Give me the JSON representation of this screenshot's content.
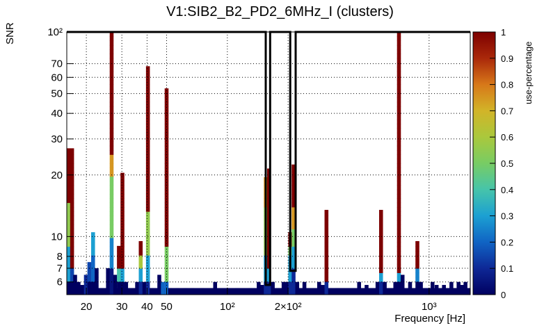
{
  "chart_data": {
    "type": "heatmap",
    "title": "V1:SIB2_B2_PD2_6MHz_I (clusters)",
    "xlabel": "Frequency [Hz]",
    "ylabel": "SNR",
    "colorbar_label": "use-percentage",
    "x_scale": "log",
    "y_scale": "log",
    "xlim": [
      16,
      1600
    ],
    "ylim": [
      5.2,
      100
    ],
    "clim": [
      0,
      1
    ],
    "x_ticks": [
      {
        "value": 20,
        "label": "20"
      },
      {
        "value": 30,
        "label": "30"
      },
      {
        "value": 40,
        "label": "40"
      },
      {
        "value": 50,
        "label": "50"
      },
      {
        "value": 100,
        "label": "10²"
      },
      {
        "value": 200,
        "label": "2×10²"
      },
      {
        "value": 1000,
        "label": "10³"
      }
    ],
    "y_ticks": [
      {
        "value": 6,
        "label": "6"
      },
      {
        "value": 7,
        "label": "7"
      },
      {
        "value": 8,
        "label": "8"
      },
      {
        "value": 10,
        "label": "10"
      },
      {
        "value": 20,
        "label": "20"
      },
      {
        "value": 30,
        "label": "30"
      },
      {
        "value": 40,
        "label": "40"
      },
      {
        "value": 50,
        "label": "50"
      },
      {
        "value": 60,
        "label": "60"
      },
      {
        "value": 70,
        "label": "70"
      },
      {
        "value": 100,
        "label": "10²"
      }
    ],
    "colorbar_ticks": [
      {
        "value": 0,
        "label": "0"
      },
      {
        "value": 0.1,
        "label": "0.1"
      },
      {
        "value": 0.2,
        "label": "0.2"
      },
      {
        "value": 0.3,
        "label": "0.3"
      },
      {
        "value": 0.4,
        "label": "0.4"
      },
      {
        "value": 0.5,
        "label": "0.5"
      },
      {
        "value": 0.6,
        "label": "0.6"
      },
      {
        "value": 0.7,
        "label": "0.7"
      },
      {
        "value": 0.8,
        "label": "0.8"
      },
      {
        "value": 0.9,
        "label": "0.9"
      },
      {
        "value": 1,
        "label": "1"
      }
    ],
    "columns": [
      {
        "f": 16.3,
        "top": 27,
        "stops": [
          [
            6,
            0
          ],
          [
            9,
            0.3
          ],
          [
            15,
            0.55
          ],
          [
            16,
            1
          ]
        ]
      },
      {
        "f": 17.0,
        "top": 27,
        "stops": [
          [
            6,
            0
          ],
          [
            7,
            0.15
          ],
          [
            100,
            1
          ]
        ]
      },
      {
        "f": 17.6,
        "top": 6.5,
        "stops": [
          [
            100,
            0
          ]
        ]
      },
      {
        "f": 18.3,
        "top": 6.0,
        "stops": [
          [
            100,
            0
          ]
        ]
      },
      {
        "f": 19.1,
        "top": 5.8,
        "stops": [
          [
            100,
            0
          ]
        ]
      },
      {
        "f": 19.9,
        "top": 6.5,
        "stops": [
          [
            100,
            0.1
          ]
        ]
      },
      {
        "f": 20.7,
        "top": 7.5,
        "stops": [
          [
            6,
            0
          ],
          [
            100,
            0.15
          ]
        ]
      },
      {
        "f": 21.6,
        "top": 10.5,
        "stops": [
          [
            6,
            0
          ],
          [
            8,
            0.2
          ],
          [
            100,
            0.3
          ]
        ]
      },
      {
        "f": 22.5,
        "top": 7.0,
        "stops": [
          [
            100,
            0
          ]
        ]
      },
      {
        "f": 23.5,
        "top": 5.6,
        "stops": [
          [
            100,
            0
          ]
        ]
      },
      {
        "f": 25.6,
        "top": 7.0,
        "stops": [
          [
            100,
            0
          ]
        ]
      },
      {
        "f": 26.7,
        "top": 100,
        "stops": [
          [
            7,
            0.05
          ],
          [
            10,
            0.25
          ],
          [
            20,
            0.5
          ],
          [
            25,
            0.75
          ],
          [
            100,
            1
          ]
        ]
      },
      {
        "f": 27.8,
        "top": 6.5,
        "stops": [
          [
            100,
            0
          ]
        ]
      },
      {
        "f": 29.0,
        "top": 9.0,
        "stops": [
          [
            6,
            0
          ],
          [
            7,
            0.4
          ],
          [
            100,
            1
          ]
        ]
      },
      {
        "f": 30.2,
        "top": 20.5,
        "stops": [
          [
            6,
            0
          ],
          [
            7,
            0.3
          ],
          [
            100,
            1
          ]
        ]
      },
      {
        "f": 31.5,
        "top": 6.0,
        "stops": [
          [
            100,
            0
          ]
        ]
      },
      {
        "f": 35.7,
        "top": 6.0,
        "stops": [
          [
            100,
            0
          ]
        ]
      },
      {
        "f": 37.2,
        "top": 9.5,
        "stops": [
          [
            6,
            0.1
          ],
          [
            7,
            0.3
          ],
          [
            8,
            0.6
          ],
          [
            100,
            1
          ]
        ]
      },
      {
        "f": 38.8,
        "top": 6.0,
        "stops": [
          [
            100,
            0
          ]
        ]
      },
      {
        "f": 40.4,
        "top": 68,
        "stops": [
          [
            6,
            0.1
          ],
          [
            8,
            0.3
          ],
          [
            13,
            0.55
          ],
          [
            100,
            1
          ]
        ]
      },
      {
        "f": 42.1,
        "top": 5.6,
        "stops": [
          [
            100,
            0
          ]
        ]
      },
      {
        "f": 46.0,
        "top": 6.5,
        "stops": [
          [
            100,
            0
          ]
        ]
      },
      {
        "f": 47.9,
        "top": 6.0,
        "stops": [
          [
            6,
            0.2
          ],
          [
            100,
            0.35
          ]
        ]
      },
      {
        "f": 50.0,
        "top": 53,
        "stops": [
          [
            6,
            0.2
          ],
          [
            9,
            0.5
          ],
          [
            100,
            1
          ]
        ]
      },
      {
        "f": 52.0,
        "top": 5.6,
        "stops": [
          [
            100,
            0
          ]
        ]
      },
      {
        "f": 56.5,
        "top": 5.6,
        "stops": [
          [
            100,
            0
          ]
        ]
      },
      {
        "f": 62.0,
        "top": 5.6,
        "stops": [
          [
            100,
            0
          ]
        ]
      },
      {
        "f": 67.0,
        "top": 5.6,
        "stops": [
          [
            100,
            0
          ]
        ]
      },
      {
        "f": 75.0,
        "top": 5.6,
        "stops": [
          [
            100,
            0
          ]
        ]
      },
      {
        "f": 87.0,
        "top": 6.0,
        "stops": [
          [
            100,
            0
          ]
        ]
      },
      {
        "f": 112.0,
        "top": 5.6,
        "stops": [
          [
            100,
            0
          ]
        ]
      },
      {
        "f": 130.0,
        "top": 5.6,
        "stops": [
          [
            100,
            0
          ]
        ]
      },
      {
        "f": 143.0,
        "top": 6.0,
        "stops": [
          [
            100,
            0
          ]
        ]
      },
      {
        "f": 149.0,
        "top": 5.8,
        "stops": [
          [
            100,
            0
          ]
        ]
      },
      {
        "f": 155.0,
        "top": 19.5,
        "stops": [
          [
            6,
            0.1
          ],
          [
            8,
            0.3
          ],
          [
            14,
            0.55
          ],
          [
            100,
            0.75
          ]
        ]
      },
      {
        "f": 161.0,
        "top": 21.5,
        "stops": [
          [
            6,
            0.1
          ],
          [
            7,
            0.3
          ],
          [
            100,
            1
          ]
        ]
      },
      {
        "f": 168.0,
        "top": 6.0,
        "stops": [
          [
            100,
            0
          ]
        ]
      },
      {
        "f": 182.0,
        "top": 5.6,
        "stops": [
          [
            100,
            0
          ]
        ]
      },
      {
        "f": 190.0,
        "top": 6.0,
        "stops": [
          [
            100,
            0
          ]
        ]
      },
      {
        "f": 197.0,
        "top": 6.0,
        "stops": [
          [
            100,
            0
          ]
        ]
      },
      {
        "f": 205.0,
        "top": 10.5,
        "stops": [
          [
            6,
            0.1
          ],
          [
            8,
            0.3
          ],
          [
            9,
            0.5
          ],
          [
            100,
            1
          ]
        ]
      },
      {
        "f": 213.0,
        "top": 22.5,
        "stops": [
          [
            7,
            0.1
          ],
          [
            9,
            0.3
          ],
          [
            11,
            0.5
          ],
          [
            14,
            0.75
          ],
          [
            100,
            1
          ]
        ]
      },
      {
        "f": 222.0,
        "top": 6.0,
        "stops": [
          [
            100,
            0
          ]
        ]
      },
      {
        "f": 232.0,
        "top": 5.6,
        "stops": [
          [
            100,
            0
          ]
        ]
      },
      {
        "f": 241.0,
        "top": 6.0,
        "stops": [
          [
            100,
            0
          ]
        ]
      },
      {
        "f": 285.0,
        "top": 6.0,
        "stops": [
          [
            100,
            0
          ]
        ]
      },
      {
        "f": 297.0,
        "top": 5.8,
        "stops": [
          [
            100,
            0
          ]
        ]
      },
      {
        "f": 310.0,
        "top": 13.5,
        "stops": [
          [
            6,
            0.1
          ],
          [
            100,
            1
          ]
        ]
      },
      {
        "f": 323.0,
        "top": 5.6,
        "stops": [
          [
            100,
            0
          ]
        ]
      },
      {
        "f": 352.0,
        "top": 5.6,
        "stops": [
          [
            100,
            0
          ]
        ]
      },
      {
        "f": 450.0,
        "top": 6.0,
        "stops": [
          [
            100,
            0
          ]
        ]
      },
      {
        "f": 490.0,
        "top": 5.8,
        "stops": [
          [
            100,
            0
          ]
        ]
      },
      {
        "f": 555.0,
        "top": 6.0,
        "stops": [
          [
            100,
            0
          ]
        ]
      },
      {
        "f": 578.0,
        "top": 13.5,
        "stops": [
          [
            6,
            0.1
          ],
          [
            6.5,
            0.3
          ],
          [
            100,
            1
          ]
        ]
      },
      {
        "f": 603.0,
        "top": 6.0,
        "stops": [
          [
            100,
            0
          ]
        ]
      },
      {
        "f": 680.0,
        "top": 6.0,
        "stops": [
          [
            100,
            0
          ]
        ]
      },
      {
        "f": 709.0,
        "top": 100,
        "stops": [
          [
            6,
            0
          ],
          [
            6.5,
            0.3
          ],
          [
            100,
            1
          ]
        ]
      },
      {
        "f": 739.0,
        "top": 6.5,
        "stops": [
          [
            100,
            0
          ]
        ]
      },
      {
        "f": 805.0,
        "top": 6.0,
        "stops": [
          [
            100,
            0
          ]
        ]
      },
      {
        "f": 875.0,
        "top": 9.5,
        "stops": [
          [
            6,
            0
          ],
          [
            7,
            0.25
          ],
          [
            100,
            1
          ]
        ]
      },
      {
        "f": 911.0,
        "top": 6.0,
        "stops": [
          [
            100,
            0
          ]
        ]
      },
      {
        "f": 1040.0,
        "top": 6.0,
        "stops": [
          [
            100,
            0
          ]
        ]
      },
      {
        "f": 1090.0,
        "top": 5.8,
        "stops": [
          [
            100,
            0
          ]
        ]
      },
      {
        "f": 1185.0,
        "top": 5.8,
        "stops": [
          [
            100,
            0
          ]
        ]
      },
      {
        "f": 1290.0,
        "top": 6.0,
        "stops": [
          [
            100,
            0
          ]
        ]
      },
      {
        "f": 1400.0,
        "top": 6.0,
        "stops": [
          [
            100,
            0
          ]
        ]
      },
      {
        "f": 1455.0,
        "top": 5.8,
        "stops": [
          [
            100,
            0
          ]
        ]
      },
      {
        "f": 1515.0,
        "top": 6.0,
        "stops": [
          [
            100,
            0
          ]
        ]
      }
    ],
    "low_snr_band": {
      "top": 5.6,
      "value": 0
    },
    "band_line": [
      [
        16,
        100
      ],
      [
        155,
        100
      ],
      [
        155,
        5.8
      ],
      [
        163,
        5.8
      ],
      [
        163,
        100
      ],
      [
        205,
        100
      ],
      [
        205,
        6.8
      ],
      [
        218,
        6.8
      ],
      [
        218,
        100
      ],
      [
        1600,
        100
      ]
    ],
    "grid": true
  }
}
